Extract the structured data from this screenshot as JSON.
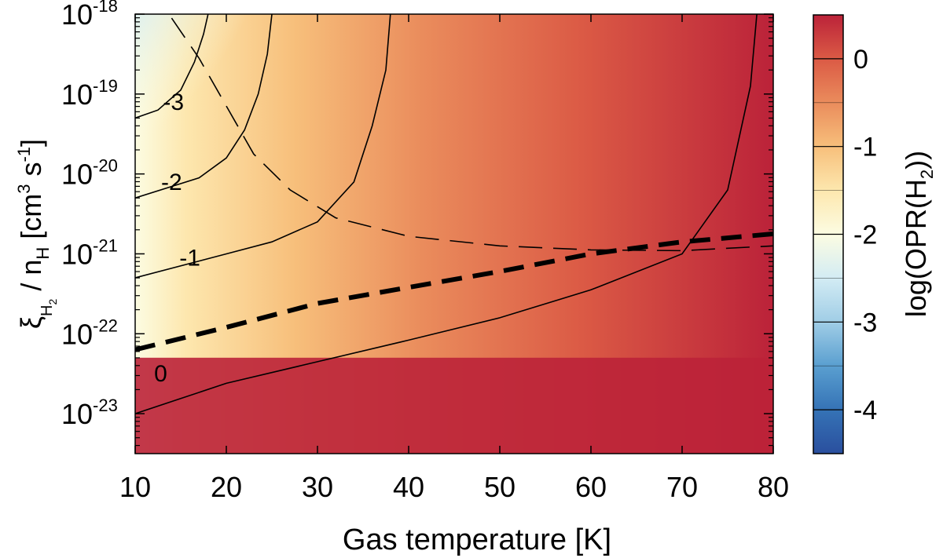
{
  "chart_data": {
    "type": "heatmap",
    "xlabel": "Gas temperature [K]",
    "ylabel_parts": {
      "xi": "ξ",
      "h": "H",
      "two": "2",
      "mid": " / n",
      "hsub": "H",
      "unit_open": " [cm",
      "three": "3",
      "s": " s",
      "minus1": "-1",
      "unit_close": "]"
    },
    "colorbar_label_parts": {
      "pre": "log(OPR(H",
      "sub": "2",
      "post": "))"
    },
    "xlim": [
      10,
      80
    ],
    "ylim_log10": [
      -23.5,
      -18
    ],
    "y_scale": "log",
    "x_ticks": [
      "10",
      "20",
      "30",
      "40",
      "50",
      "60",
      "70",
      "80"
    ],
    "y_ticks": [
      {
        "base": "10",
        "exp": "-18",
        "log": -18
      },
      {
        "base": "10",
        "exp": "-19",
        "log": -19
      },
      {
        "base": "10",
        "exp": "-20",
        "log": -20
      },
      {
        "base": "10",
        "exp": "-21",
        "log": -21
      },
      {
        "base": "10",
        "exp": "-22",
        "log": -22
      },
      {
        "base": "10",
        "exp": "-23",
        "log": -23
      }
    ],
    "colorbar": {
      "range": [
        -4.5,
        0.5
      ],
      "ticks": [
        "0",
        "-1",
        "-2",
        "-3",
        "-4"
      ],
      "tick_values": [
        0,
        -1,
        -2,
        -3,
        -4
      ],
      "stops": [
        {
          "v": -4.5,
          "color": "#2a4f9e"
        },
        {
          "v": -4.0,
          "color": "#3573b6"
        },
        {
          "v": -3.5,
          "color": "#5a9fd0"
        },
        {
          "v": -3.0,
          "color": "#a0cde6"
        },
        {
          "v": -2.5,
          "color": "#d3ecf4"
        },
        {
          "v": -2.0,
          "color": "#fcfce2"
        },
        {
          "v": -1.5,
          "color": "#fde7ae"
        },
        {
          "v": -1.0,
          "color": "#f7bf7b"
        },
        {
          "v": -0.5,
          "color": "#ea8c5c"
        },
        {
          "v": 0.0,
          "color": "#db5a45"
        },
        {
          "v": 0.5,
          "color": "#bb2239"
        }
      ]
    },
    "contour_labels": [
      {
        "text": "-3",
        "x": 14.2,
        "y": -19.1
      },
      {
        "text": "-2",
        "x": 14.0,
        "y": -20.1
      },
      {
        "text": "-1",
        "x": 16.0,
        "y": -21.05
      },
      {
        "text": "0",
        "x": 12.8,
        "y": -22.5
      }
    ],
    "series": [
      {
        "style": "solid-contour",
        "points": [
          [
            10,
            -23.0
          ],
          [
            20,
            -22.62
          ],
          [
            30,
            -22.35
          ],
          [
            40,
            -22.08
          ],
          [
            50,
            -21.8
          ],
          [
            60,
            -21.45
          ],
          [
            70,
            -21.0
          ],
          [
            75,
            -20.2
          ],
          [
            77.5,
            -18.9
          ],
          [
            78.2,
            -18.0
          ]
        ]
      },
      {
        "style": "solid-contour",
        "points": [
          [
            10,
            -21.3
          ],
          [
            20,
            -21.0
          ],
          [
            25,
            -20.85
          ],
          [
            30,
            -20.6
          ],
          [
            34,
            -20.1
          ],
          [
            36,
            -19.4
          ],
          [
            37.5,
            -18.7
          ],
          [
            38,
            -18.0
          ]
        ]
      },
      {
        "style": "solid-contour",
        "points": [
          [
            10,
            -20.3
          ],
          [
            17,
            -20.05
          ],
          [
            20,
            -19.8
          ],
          [
            22,
            -19.45
          ],
          [
            23.5,
            -19.0
          ],
          [
            24.5,
            -18.5
          ],
          [
            25,
            -18.0
          ]
        ]
      },
      {
        "style": "solid-contour",
        "points": [
          [
            10,
            -19.3
          ],
          [
            12.5,
            -19.2
          ],
          [
            15,
            -18.95
          ],
          [
            16.5,
            -18.6
          ],
          [
            17.5,
            -18.25
          ],
          [
            18,
            -18.0
          ]
        ]
      },
      {
        "style": "thick-dashed",
        "points": [
          [
            10,
            -22.2
          ],
          [
            20,
            -21.92
          ],
          [
            30,
            -21.62
          ],
          [
            40,
            -21.42
          ],
          [
            50,
            -21.22
          ],
          [
            60,
            -21.0
          ],
          [
            70,
            -20.85
          ],
          [
            80,
            -20.75
          ]
        ]
      },
      {
        "style": "thin-dashed",
        "points": [
          [
            14,
            -18.05
          ],
          [
            17,
            -18.55
          ],
          [
            20,
            -19.15
          ],
          [
            23,
            -19.75
          ],
          [
            27,
            -20.2
          ],
          [
            32,
            -20.55
          ],
          [
            40,
            -20.78
          ],
          [
            50,
            -20.9
          ],
          [
            60,
            -20.95
          ],
          [
            70,
            -20.96
          ],
          [
            80,
            -20.9
          ]
        ]
      }
    ],
    "grid": false,
    "legend": "none"
  }
}
